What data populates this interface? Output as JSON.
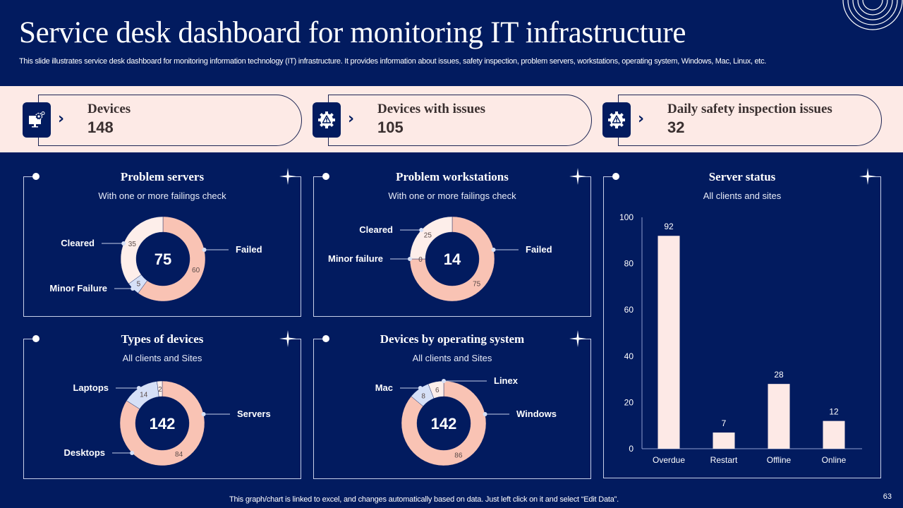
{
  "header": {
    "title": "Service desk dashboard for monitoring IT infrastructure",
    "description": "This slide illustrates service desk dashboard for monitoring information technology (IT) infrastructure. It provides information about issues, safety inspection, problem servers, workstations, operating system, Windows, Mac, Linux, etc."
  },
  "kpis": [
    {
      "label": "Devices",
      "value": "148",
      "icon": "monitor-gear-icon"
    },
    {
      "label": "Devices with issues",
      "value": "105",
      "icon": "gear-warning-icon"
    },
    {
      "label": "Daily safety inspection issues",
      "value": "32",
      "icon": "gear-warning-icon"
    }
  ],
  "colors": {
    "background": "#021b5f",
    "band": "#fdeae6",
    "salmon": "#f9c3b4",
    "blush": "#fdeeea",
    "lightblue": "#d6e0f7",
    "bar": "#fde9e6",
    "text_dark": "#3a3030"
  },
  "panels": {
    "problem_servers": {
      "title": "Problem servers",
      "subtitle": "With one or more failings check"
    },
    "problem_workstations": {
      "title": "Problem workstations",
      "subtitle": "With one or more failings check"
    },
    "types_of_devices": {
      "title": "Types of devices",
      "subtitle": "All clients and Sites"
    },
    "devices_by_os": {
      "title": "Devices by operating system",
      "subtitle": "All clients and Sites"
    },
    "server_status": {
      "title": "Server status",
      "subtitle": "All clients and sites"
    }
  },
  "chart_data": [
    {
      "type": "pie",
      "id": "problem_servers",
      "title": "Problem servers",
      "subtitle": "With one or more failings check",
      "center_label": "75",
      "slices": [
        {
          "label": "Failed",
          "value": 60,
          "color": "#f9c3b4"
        },
        {
          "label": "Minor Failure",
          "value": 5,
          "color": "#d6e0f7"
        },
        {
          "label": "Cleared",
          "value": 35,
          "color": "#fdeeea"
        }
      ]
    },
    {
      "type": "pie",
      "id": "problem_workstations",
      "title": "Problem workstations",
      "subtitle": "With one or more failings check",
      "center_label": "14",
      "slices": [
        {
          "label": "Failed",
          "value": 75,
          "color": "#f9c3b4"
        },
        {
          "label": "Minor failure",
          "value": 0,
          "color": "#d6e0f7"
        },
        {
          "label": "Cleared",
          "value": 25,
          "color": "#fdeeea"
        }
      ]
    },
    {
      "type": "pie",
      "id": "types_of_devices",
      "title": "Types of devices",
      "subtitle": "All clients and Sites",
      "center_label": "142",
      "slices": [
        {
          "label": "Servers",
          "value": 84,
          "color": "#f9c3b4",
          "hidden_value": true
        },
        {
          "label": "Desktops",
          "value": 84,
          "color": "#f9c3b4"
        },
        {
          "label": "Laptops",
          "value": 14,
          "color": "#d6e0f7"
        },
        {
          "label": "",
          "value": 2,
          "color": "#fdeeea"
        }
      ]
    },
    {
      "type": "pie",
      "id": "devices_by_os",
      "title": "Devices by operating system",
      "subtitle": "All clients and Sites",
      "center_label": "142",
      "slices": [
        {
          "label": "Windows",
          "value": 86,
          "color": "#f9c3b4"
        },
        {
          "label": "Mac",
          "value": 8,
          "color": "#d6e0f7"
        },
        {
          "label": "Linex",
          "value": 6,
          "color": "#fdeeea"
        }
      ]
    },
    {
      "type": "bar",
      "id": "server_status",
      "title": "Server status",
      "subtitle": "All clients and sites",
      "categories": [
        "Overdue",
        "Restart",
        "Offline",
        "Online"
      ],
      "values": [
        92,
        7,
        28,
        12
      ],
      "ylim": [
        0,
        100
      ],
      "yticks": [
        0,
        20,
        40,
        60,
        80,
        100
      ],
      "xlabel": "",
      "ylabel": "",
      "grid": false
    }
  ],
  "footer": {
    "note": "This graph/chart is linked to excel, and changes automatically based on data. Just left click on it and select “Edit Data”.",
    "page_number": "63"
  }
}
